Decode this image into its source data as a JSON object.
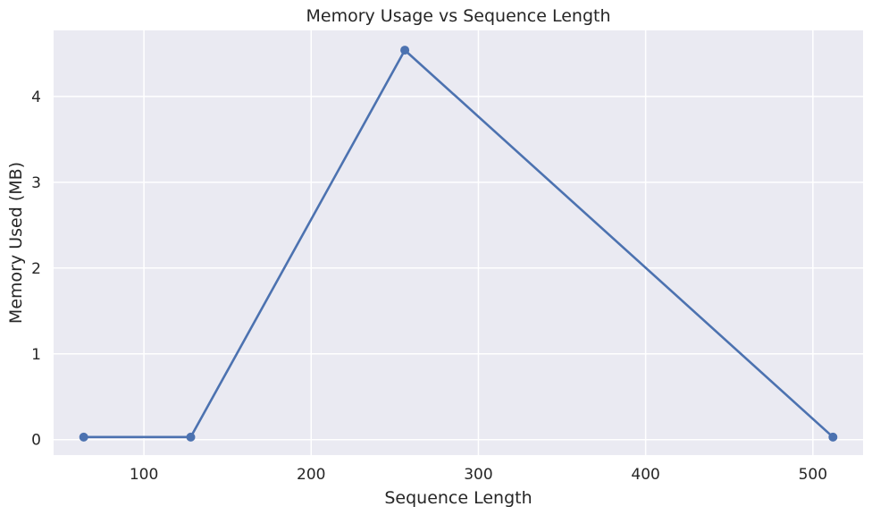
{
  "chart_data": {
    "type": "line",
    "title": "Memory Usage vs Sequence Length",
    "xlabel": "Sequence Length",
    "ylabel": "Memory Used (MB)",
    "xlim": [
      46,
      530
    ],
    "ylim": [
      -0.18,
      4.77
    ],
    "xticks": [
      100,
      200,
      300,
      400,
      500
    ],
    "yticks": [
      0,
      1,
      2,
      3,
      4
    ],
    "grid": true,
    "legend": "none",
    "series": [
      {
        "x": [
          64,
          128,
          256,
          512
        ],
        "values": [
          0.03,
          0.03,
          4.54,
          0.03
        ],
        "color": "#4c72b0"
      }
    ],
    "colors": {
      "plot_background": "#eaeaf2",
      "grid": "#ffffff",
      "line": "#4c72b0",
      "text": "#262626"
    }
  }
}
